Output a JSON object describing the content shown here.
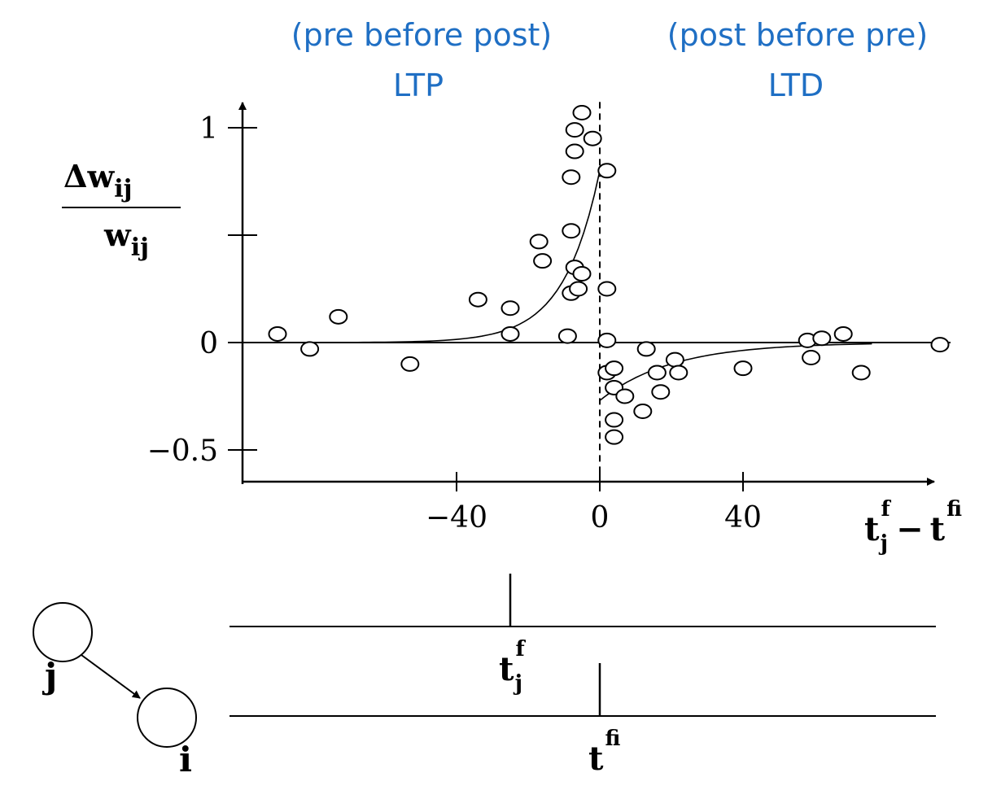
{
  "header": {
    "left_line1": "(pre before post)",
    "left_line2": "LTP",
    "right_line1": "(post before pre)",
    "right_line2": "LTD"
  },
  "colors": {
    "annotation": "#1f6fc4",
    "ink": "#000000"
  },
  "chart_data": {
    "type": "scatter",
    "title": "",
    "ylabel_numerator": "Δw",
    "ylabel_denominator": "w",
    "ylabel_subscript": "ij",
    "xlabel_base1": "t",
    "xlabel_sub1": "j",
    "xlabel_sup1": "f",
    "xlabel_op": "−",
    "xlabel_base2": "t",
    "xlabel_sub2": "i",
    "xlabel_sup2": "f",
    "xlim": [
      -100,
      95
    ],
    "ylim": [
      -0.65,
      1.12
    ],
    "xticks": [
      {
        "value": -40,
        "label": "−40"
      },
      {
        "value": 0,
        "label": "0"
      },
      {
        "value": 40,
        "label": "40"
      }
    ],
    "yticks": [
      {
        "value": 1,
        "label": "1"
      },
      {
        "value": 0.5,
        "label": ""
      },
      {
        "value": 0,
        "label": "0"
      },
      {
        "value": -0.5,
        "label": "−0.5"
      }
    ],
    "dashed_vline_x": 0,
    "points": [
      [
        -90,
        0.04
      ],
      [
        -81,
        -0.03
      ],
      [
        -73,
        0.12
      ],
      [
        -53,
        -0.1
      ],
      [
        -34,
        0.2
      ],
      [
        -25,
        0.16
      ],
      [
        -25,
        0.04
      ],
      [
        -17,
        0.47
      ],
      [
        -16,
        0.38
      ],
      [
        -9,
        0.03
      ],
      [
        -8,
        0.77
      ],
      [
        -8,
        0.52
      ],
      [
        -8,
        0.23
      ],
      [
        -7,
        0.89
      ],
      [
        -7,
        0.99
      ],
      [
        -7,
        0.35
      ],
      [
        -6,
        0.25
      ],
      [
        -5,
        1.07
      ],
      [
        -5,
        0.32
      ],
      [
        -2,
        0.95
      ],
      [
        2,
        0.8
      ],
      [
        2,
        0.25
      ],
      [
        2,
        0.01
      ],
      [
        2,
        -0.14
      ],
      [
        4,
        -0.12
      ],
      [
        4,
        -0.21
      ],
      [
        4,
        -0.36
      ],
      [
        4,
        -0.44
      ],
      [
        7,
        -0.25
      ],
      [
        12,
        -0.32
      ],
      [
        13,
        -0.03
      ],
      [
        16,
        -0.14
      ],
      [
        17,
        -0.23
      ],
      [
        21,
        -0.08
      ],
      [
        22,
        -0.14
      ],
      [
        40,
        -0.12
      ],
      [
        58,
        0.01
      ],
      [
        59,
        -0.07
      ],
      [
        62,
        0.02
      ],
      [
        68,
        0.04
      ],
      [
        73,
        -0.14
      ],
      [
        95,
        -0.01
      ]
    ],
    "fit_ltp": {
      "amplitude": 0.8,
      "tau": 10,
      "x_range": [
        -90,
        0
      ]
    },
    "fit_ltd": {
      "amplitude": -0.27,
      "tau": 20,
      "x_range": [
        0,
        76
      ]
    }
  },
  "spikes": {
    "pre_label_base": "t",
    "pre_label_sub": "j",
    "pre_label_sup": "f",
    "post_label_base": "t",
    "post_label_sub": "i",
    "post_label_sup": "f",
    "pre_spike_x": -25,
    "post_spike_x": 0
  },
  "neurons": {
    "pre_label": "j",
    "post_label": "i"
  }
}
